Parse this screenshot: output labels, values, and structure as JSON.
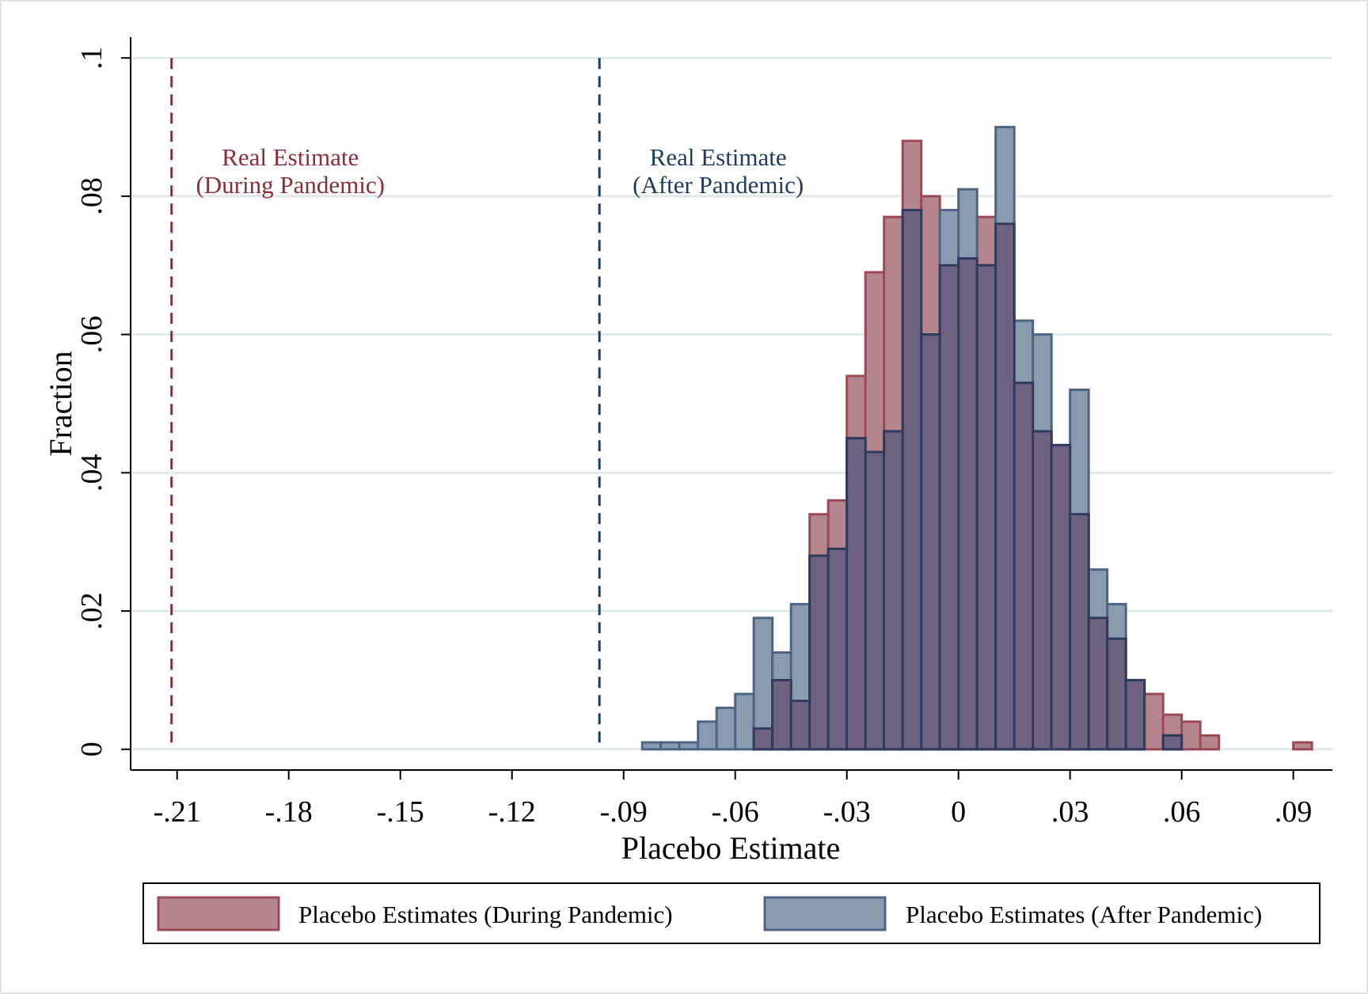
{
  "chart_data": {
    "type": "histogram",
    "xlabel": "Placebo Estimate",
    "ylabel": "Fraction",
    "xlim": [
      -0.2225,
      0.1005
    ],
    "ylim": [
      -0.003,
      0.103
    ],
    "bin_width": 0.005,
    "x_ticks": [
      {
        "value": -0.21,
        "label": "-.21"
      },
      {
        "value": -0.18,
        "label": "-.18"
      },
      {
        "value": -0.15,
        "label": "-.15"
      },
      {
        "value": -0.12,
        "label": "-.12"
      },
      {
        "value": -0.09,
        "label": "-.09"
      },
      {
        "value": -0.06,
        "label": "-.06"
      },
      {
        "value": -0.03,
        "label": "-.03"
      },
      {
        "value": 0,
        "label": "0"
      },
      {
        "value": 0.03,
        "label": ".03"
      },
      {
        "value": 0.06,
        "label": ".06"
      },
      {
        "value": 0.09,
        "label": ".09"
      }
    ],
    "y_ticks": [
      {
        "value": 0,
        "label": "0"
      },
      {
        "value": 0.02,
        "label": ".02"
      },
      {
        "value": 0.04,
        "label": ".04"
      },
      {
        "value": 0.06,
        "label": ".06"
      },
      {
        "value": 0.08,
        "label": ".08"
      },
      {
        "value": 0.1,
        "label": ".1"
      }
    ],
    "grid": true,
    "legend_position": "bottom",
    "series": [
      {
        "name": "Placebo Estimates (During Pandemic)",
        "color": "#b5868e",
        "edge_color": "#9b4a55",
        "bins": [
          {
            "x0": -0.055,
            "value": 0.003
          },
          {
            "x0": -0.05,
            "value": 0.01
          },
          {
            "x0": -0.045,
            "value": 0.007
          },
          {
            "x0": -0.04,
            "value": 0.034
          },
          {
            "x0": -0.035,
            "value": 0.036
          },
          {
            "x0": -0.03,
            "value": 0.054
          },
          {
            "x0": -0.025,
            "value": 0.069
          },
          {
            "x0": -0.02,
            "value": 0.077
          },
          {
            "x0": -0.015,
            "value": 0.088
          },
          {
            "x0": -0.01,
            "value": 0.08
          },
          {
            "x0": -0.005,
            "value": 0.07
          },
          {
            "x0": 0.0,
            "value": 0.071
          },
          {
            "x0": 0.005,
            "value": 0.077
          },
          {
            "x0": 0.01,
            "value": 0.076
          },
          {
            "x0": 0.015,
            "value": 0.053
          },
          {
            "x0": 0.02,
            "value": 0.046
          },
          {
            "x0": 0.025,
            "value": 0.044
          },
          {
            "x0": 0.03,
            "value": 0.034
          },
          {
            "x0": 0.035,
            "value": 0.019
          },
          {
            "x0": 0.04,
            "value": 0.016
          },
          {
            "x0": 0.045,
            "value": 0.01
          },
          {
            "x0": 0.05,
            "value": 0.008
          },
          {
            "x0": 0.055,
            "value": 0.005
          },
          {
            "x0": 0.06,
            "value": 0.004
          },
          {
            "x0": 0.065,
            "value": 0.002
          },
          {
            "x0": 0.09,
            "value": 0.001
          }
        ]
      },
      {
        "name": "Placebo Estimates (After Pandemic)",
        "color": "#8a9bb0",
        "edge_color": "#4d6584",
        "bins": [
          {
            "x0": -0.085,
            "value": 0.001
          },
          {
            "x0": -0.08,
            "value": 0.001
          },
          {
            "x0": -0.075,
            "value": 0.001
          },
          {
            "x0": -0.07,
            "value": 0.004
          },
          {
            "x0": -0.065,
            "value": 0.006
          },
          {
            "x0": -0.06,
            "value": 0.008
          },
          {
            "x0": -0.055,
            "value": 0.019
          },
          {
            "x0": -0.05,
            "value": 0.014
          },
          {
            "x0": -0.045,
            "value": 0.021
          },
          {
            "x0": -0.04,
            "value": 0.028
          },
          {
            "x0": -0.035,
            "value": 0.029
          },
          {
            "x0": -0.03,
            "value": 0.045
          },
          {
            "x0": -0.025,
            "value": 0.043
          },
          {
            "x0": -0.02,
            "value": 0.046
          },
          {
            "x0": -0.015,
            "value": 0.078
          },
          {
            "x0": -0.01,
            "value": 0.06
          },
          {
            "x0": -0.005,
            "value": 0.078
          },
          {
            "x0": 0.0,
            "value": 0.081
          },
          {
            "x0": 0.005,
            "value": 0.07
          },
          {
            "x0": 0.01,
            "value": 0.09
          },
          {
            "x0": 0.015,
            "value": 0.062
          },
          {
            "x0": 0.02,
            "value": 0.06
          },
          {
            "x0": 0.025,
            "value": 0.044
          },
          {
            "x0": 0.03,
            "value": 0.052
          },
          {
            "x0": 0.035,
            "value": 0.026
          },
          {
            "x0": 0.04,
            "value": 0.021
          },
          {
            "x0": 0.045,
            "value": 0.01
          },
          {
            "x0": 0.055,
            "value": 0.002
          }
        ]
      }
    ],
    "overlap_color": "#6d6381",
    "overlap_edge_color": "#2f3a5c",
    "reference_lines": [
      {
        "x": -0.2115,
        "color": "#8b2e3a",
        "label_lines": [
          "Real Estimate",
          "(During Pandemic)"
        ]
      },
      {
        "x": -0.0965,
        "color": "#1f3b5e",
        "label_lines": [
          "Real Estimate",
          "(After Pandemic)"
        ]
      }
    ]
  }
}
